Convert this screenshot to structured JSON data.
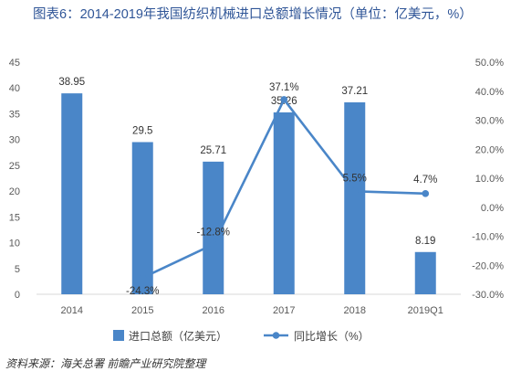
{
  "title": "图表6：2014-2019年我国纺织机械进口总额增长情况（单位：亿美元，%）",
  "source": "资料来源：海关总署 前瞻产业研究院整理",
  "colors": {
    "bar": "#4a86c8",
    "line": "#4a86c8",
    "title": "#2f5597",
    "grid": "#d9d9d9"
  },
  "chart_data": {
    "type": "bar",
    "categories": [
      "2014",
      "2015",
      "2016",
      "2017",
      "2018",
      "2019Q1"
    ],
    "series": [
      {
        "name": "进口总额（亿美元）",
        "type": "bar",
        "axis": "left",
        "values": [
          38.95,
          29.5,
          25.71,
          35.26,
          37.21,
          8.19
        ],
        "labels": [
          "38.95",
          "29.5",
          "25.71",
          "35.26",
          "37.21",
          "8.19"
        ]
      },
      {
        "name": "同比增长（%）",
        "type": "line",
        "axis": "right",
        "values": [
          null,
          -24.3,
          -12.8,
          37.1,
          5.5,
          4.7
        ],
        "labels": [
          "",
          "-24.3%",
          "-12.8%",
          "37.1%",
          "5.5%",
          "4.7%"
        ]
      }
    ],
    "y_left": {
      "min": 0,
      "max": 45,
      "ticks": [
        0,
        5,
        10,
        15,
        20,
        25,
        30,
        35,
        40,
        45
      ],
      "tick_labels": [
        "0",
        "5",
        "10",
        "15",
        "20",
        "25",
        "30",
        "35",
        "40",
        "45"
      ]
    },
    "y_right": {
      "min": -30,
      "max": 50,
      "ticks": [
        -30,
        -20,
        -10,
        0,
        10,
        20,
        30,
        40,
        50
      ],
      "tick_labels": [
        "-30.0%",
        "-20.0%",
        "-10.0%",
        "0.0%",
        "10.0%",
        "20.0%",
        "30.0%",
        "40.0%",
        "50.0%"
      ]
    },
    "grid": false,
    "legend": "bottom"
  }
}
